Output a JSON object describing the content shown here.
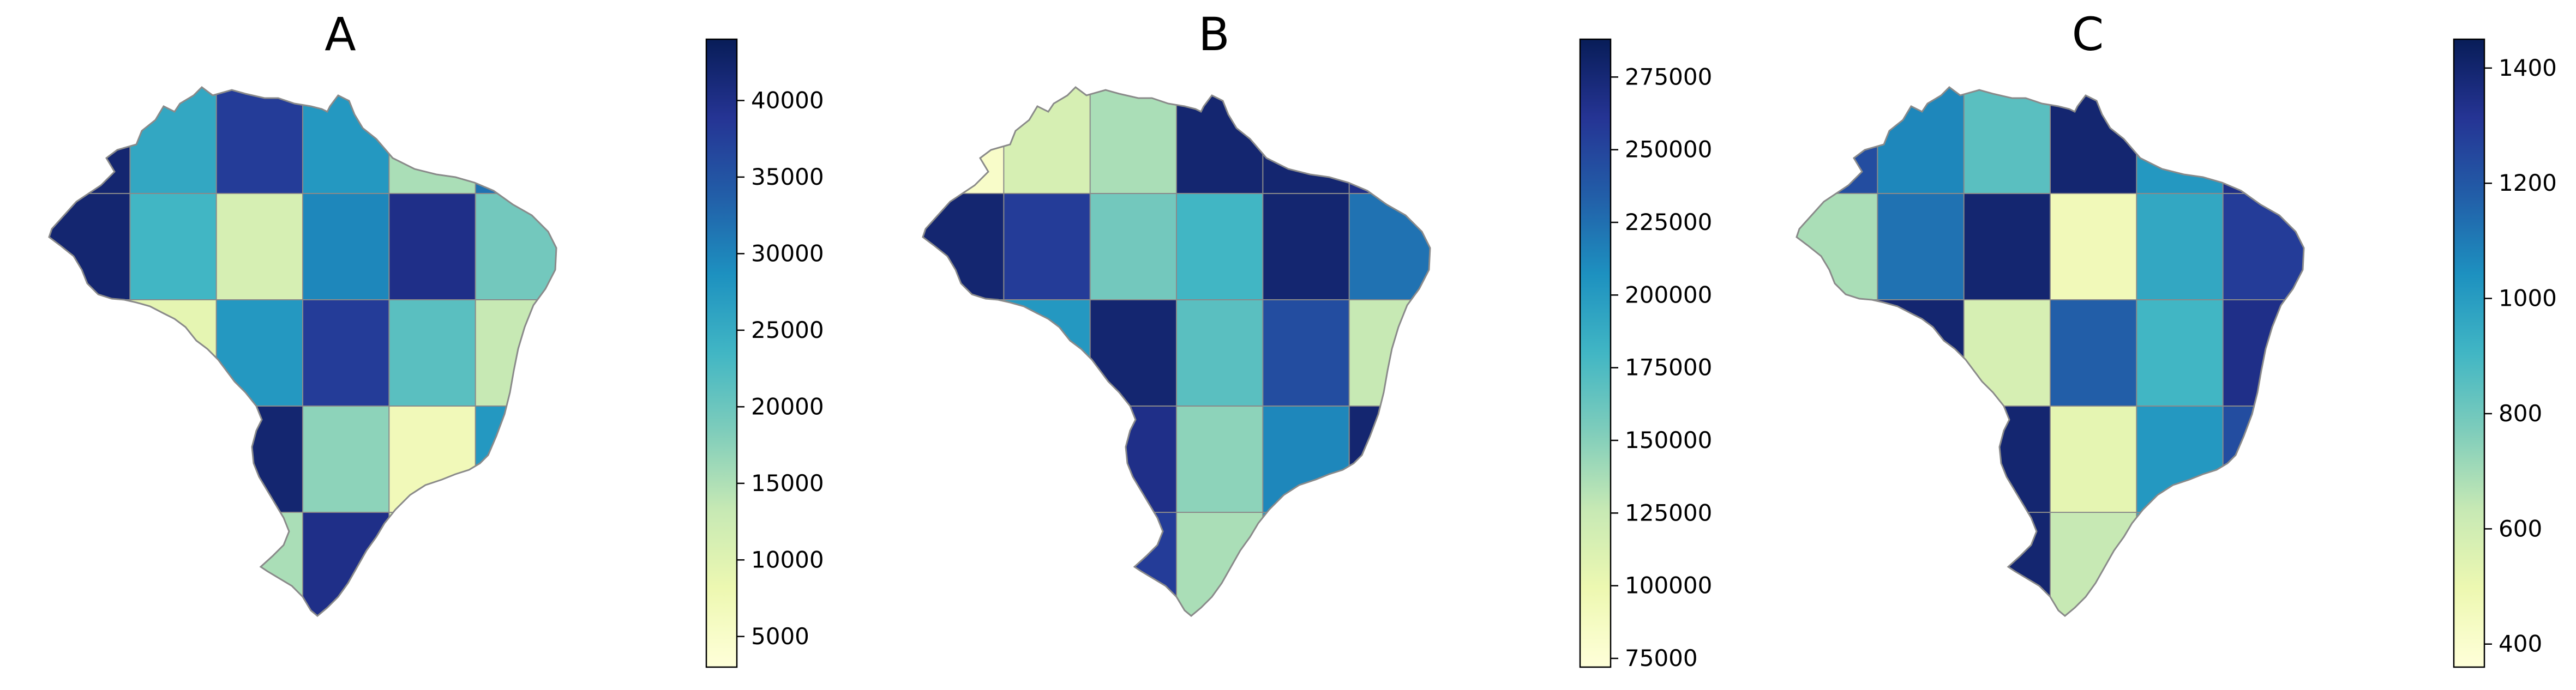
{
  "panels": [
    {
      "id": "A",
      "title": "A",
      "colorbar": {
        "min": 3000,
        "max": 44000,
        "ticks": [
          "5000",
          "10000",
          "15000",
          "20000",
          "25000",
          "30000",
          "35000",
          "40000"
        ]
      },
      "fill_levels": [
        0.95,
        0.55,
        0.85,
        0.6,
        0.3,
        0.7,
        0.95,
        0.5,
        0.2,
        0.65,
        0.9,
        0.4,
        0.75,
        0.15,
        0.6,
        0.85,
        0.45,
        0.25,
        0.7,
        0.55,
        0.95,
        0.35,
        0.1,
        0.6,
        0.8,
        0.5,
        0.3,
        0.9,
        0.2,
        0.65
      ]
    },
    {
      "id": "B",
      "title": "B",
      "colorbar": {
        "min": 72000,
        "max": 288000,
        "ticks": [
          "75000",
          "100000",
          "125000",
          "150000",
          "175000",
          "200000",
          "225000",
          "250000",
          "275000"
        ]
      },
      "fill_levels": [
        0.05,
        0.2,
        0.3,
        0.95,
        0.95,
        0.9,
        0.95,
        0.85,
        0.4,
        0.5,
        0.95,
        0.7,
        0.3,
        0.6,
        0.95,
        0.45,
        0.8,
        0.25,
        0.95,
        0.55,
        0.9,
        0.35,
        0.65,
        0.95,
        0.4,
        0.7,
        0.85,
        0.3,
        0.6,
        0.75
      ]
    },
    {
      "id": "C",
      "title": "C",
      "colorbar": {
        "min": 360,
        "max": 1450,
        "ticks": [
          "400",
          "600",
          "800",
          "1000",
          "1200",
          "1400"
        ]
      },
      "fill_levels": [
        0.8,
        0.65,
        0.45,
        0.95,
        0.6,
        0.9,
        0.3,
        0.7,
        0.95,
        0.1,
        0.55,
        0.85,
        0.4,
        0.95,
        0.2,
        0.75,
        0.5,
        0.9,
        0.35,
        0.65,
        0.95,
        0.15,
        0.6,
        0.8,
        0.45,
        0.7,
        0.95,
        0.25,
        0.55,
        0.85
      ]
    }
  ],
  "colormap": [
    "#ffffd9",
    "#edf8b1",
    "#c7e9b4",
    "#7fcdbb",
    "#41b6c4",
    "#1d91c0",
    "#225ea8",
    "#253494",
    "#081d58"
  ],
  "border_color": "#8a8a8a"
}
